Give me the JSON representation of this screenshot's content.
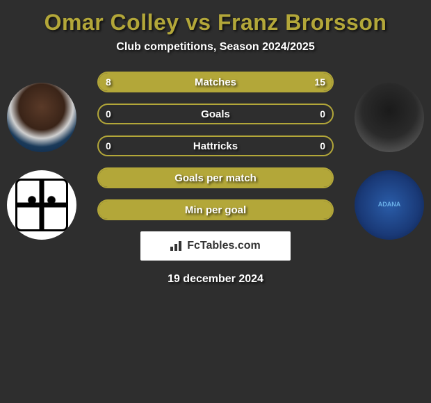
{
  "title": "Omar Colley vs Franz Brorsson",
  "subtitle": "Club competitions, Season 2024/2025",
  "date": "19 december 2024",
  "watermark": "FcTables.com",
  "colors": {
    "accent": "#b3a739",
    "background": "#2e2e2e",
    "text": "#ffffff"
  },
  "bars": [
    {
      "label": "Matches",
      "left_value": "8",
      "right_value": "15",
      "left_pct": 35,
      "right_pct": 65,
      "full": false,
      "show_values": true
    },
    {
      "label": "Goals",
      "left_value": "0",
      "right_value": "0",
      "left_pct": 0,
      "right_pct": 0,
      "full": false,
      "show_values": true
    },
    {
      "label": "Hattricks",
      "left_value": "0",
      "right_value": "0",
      "left_pct": 0,
      "right_pct": 0,
      "full": false,
      "show_values": true
    },
    {
      "label": "Goals per match",
      "left_value": "",
      "right_value": "",
      "left_pct": 0,
      "right_pct": 0,
      "full": true,
      "show_values": false
    },
    {
      "label": "Min per goal",
      "left_value": "",
      "right_value": "",
      "left_pct": 0,
      "right_pct": 0,
      "full": true,
      "show_values": false
    }
  ],
  "right_club_text": "ADANA"
}
